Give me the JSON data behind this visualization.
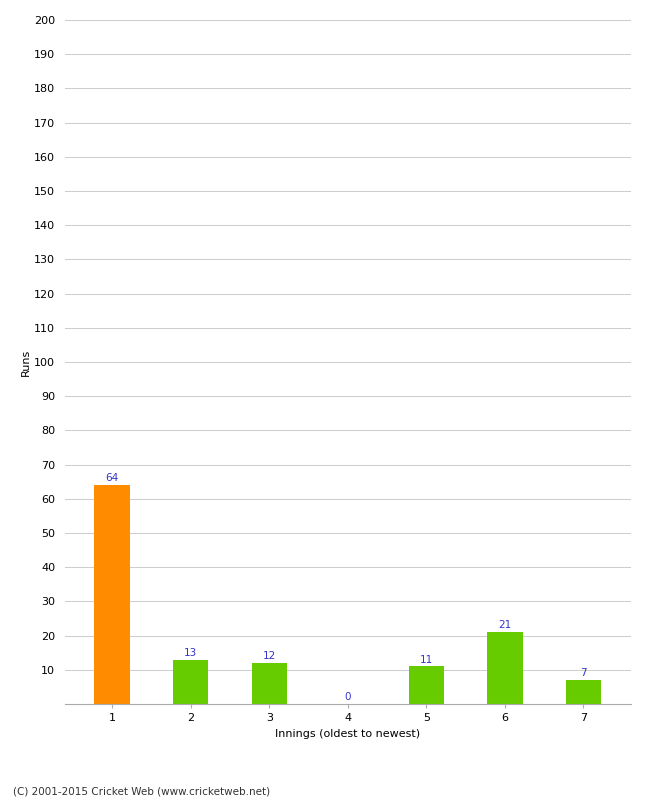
{
  "categories": [
    "1",
    "2",
    "3",
    "4",
    "5",
    "6",
    "7"
  ],
  "values": [
    64,
    13,
    12,
    0,
    11,
    21,
    7
  ],
  "bar_colors": [
    "#ff8c00",
    "#66cc00",
    "#66cc00",
    "#66cc00",
    "#66cc00",
    "#66cc00",
    "#66cc00"
  ],
  "ylabel": "Runs",
  "xlabel": "Innings (oldest to newest)",
  "ylim": [
    0,
    200
  ],
  "yticks": [
    0,
    10,
    20,
    30,
    40,
    50,
    60,
    70,
    80,
    90,
    100,
    110,
    120,
    130,
    140,
    150,
    160,
    170,
    180,
    190,
    200
  ],
  "label_color": "#3333cc",
  "label_fontsize": 7.5,
  "axis_fontsize": 8,
  "tick_fontsize": 8,
  "footer": "(C) 2001-2015 Cricket Web (www.cricketweb.net)",
  "footer_fontsize": 7.5,
  "background_color": "#ffffff",
  "grid_color": "#cccccc",
  "bar_width": 0.45
}
